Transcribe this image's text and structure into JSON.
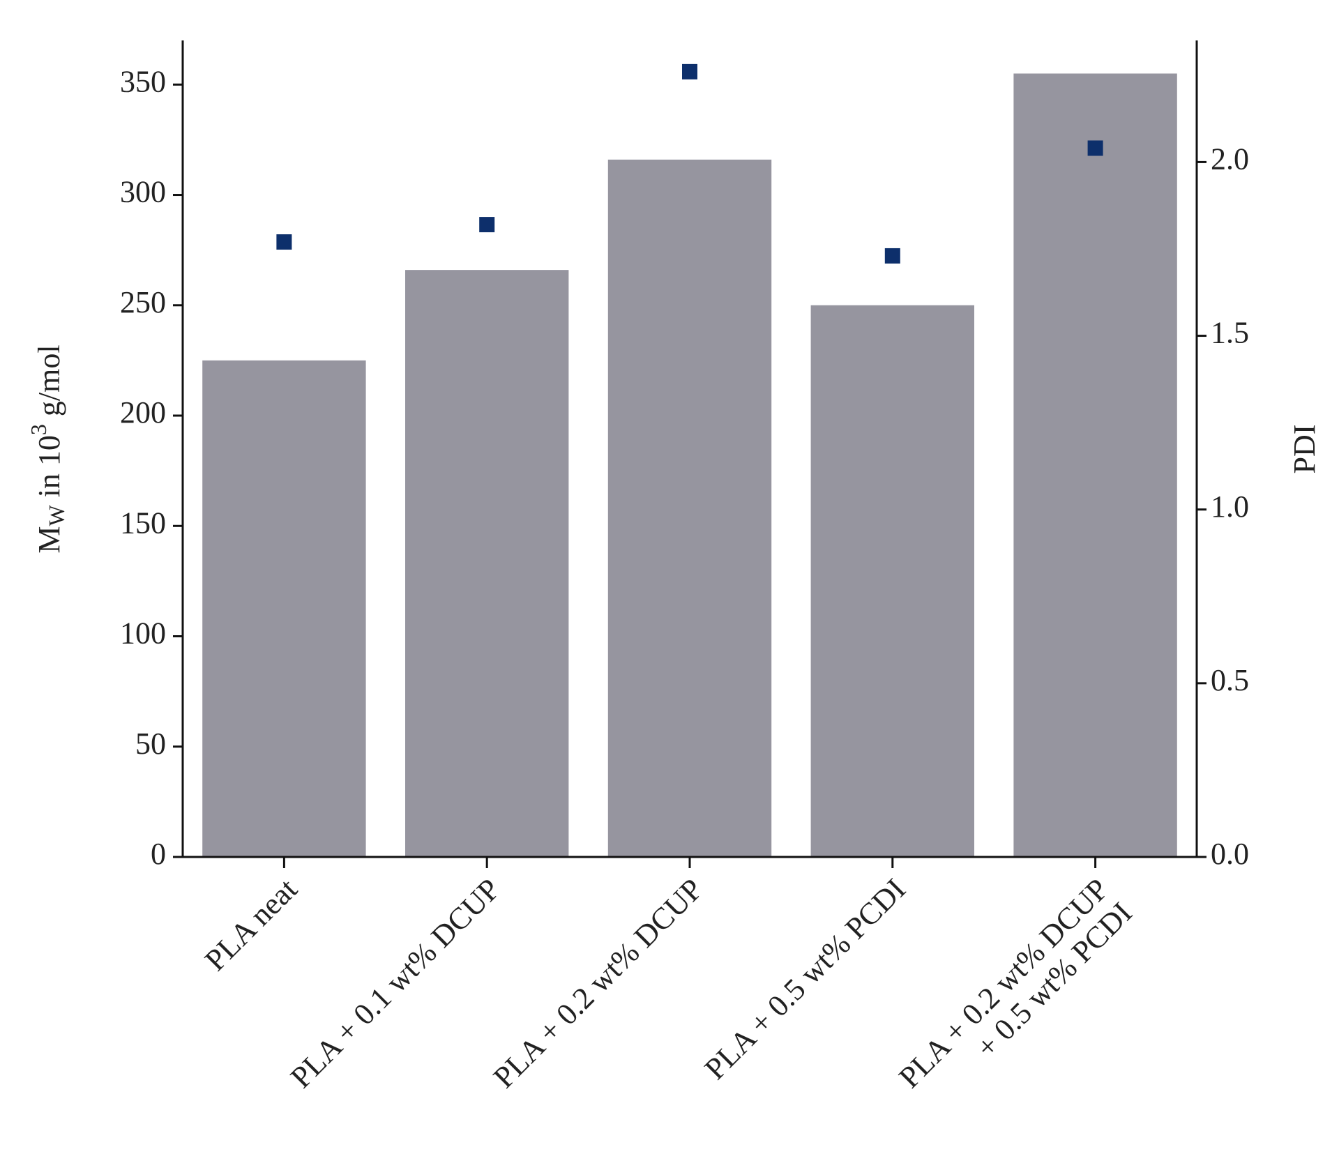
{
  "chart_data": {
    "type": "bar+scatter",
    "categories": [
      [
        "PLA neat"
      ],
      [
        "PLA + 0.1 wt% DCUP"
      ],
      [
        "PLA + 0.2 wt% DCUP"
      ],
      [
        "PLA + 0.5 wt% PCDI"
      ],
      [
        "PLA + 0.2 wt% DCUP",
        "+ 0.5 wt% PCDI"
      ]
    ],
    "ylabel": [
      "M",
      "W",
      " in 10",
      "3",
      " g/mol"
    ],
    "y2label": "PDI",
    "series": [
      {
        "type": "bar",
        "color": "#96959f",
        "values": [
          225,
          266,
          316,
          250,
          355
        ]
      },
      {
        "type": "scatter",
        "axis": "y2",
        "color": "#0d2f6b",
        "values": [
          1.77,
          1.82,
          2.26,
          1.73,
          2.04
        ]
      }
    ],
    "ylim": [
      0,
      370
    ],
    "yticks": [
      0,
      50,
      100,
      150,
      200,
      250,
      300,
      350
    ],
    "y2lim": [
      0,
      2.35
    ],
    "y2ticks": [
      {
        "value": 0,
        "label": "0.0"
      },
      0.5,
      {
        "value": 1,
        "label": "1.0"
      },
      1.5,
      {
        "value": 2,
        "label": "2.0"
      }
    ]
  }
}
